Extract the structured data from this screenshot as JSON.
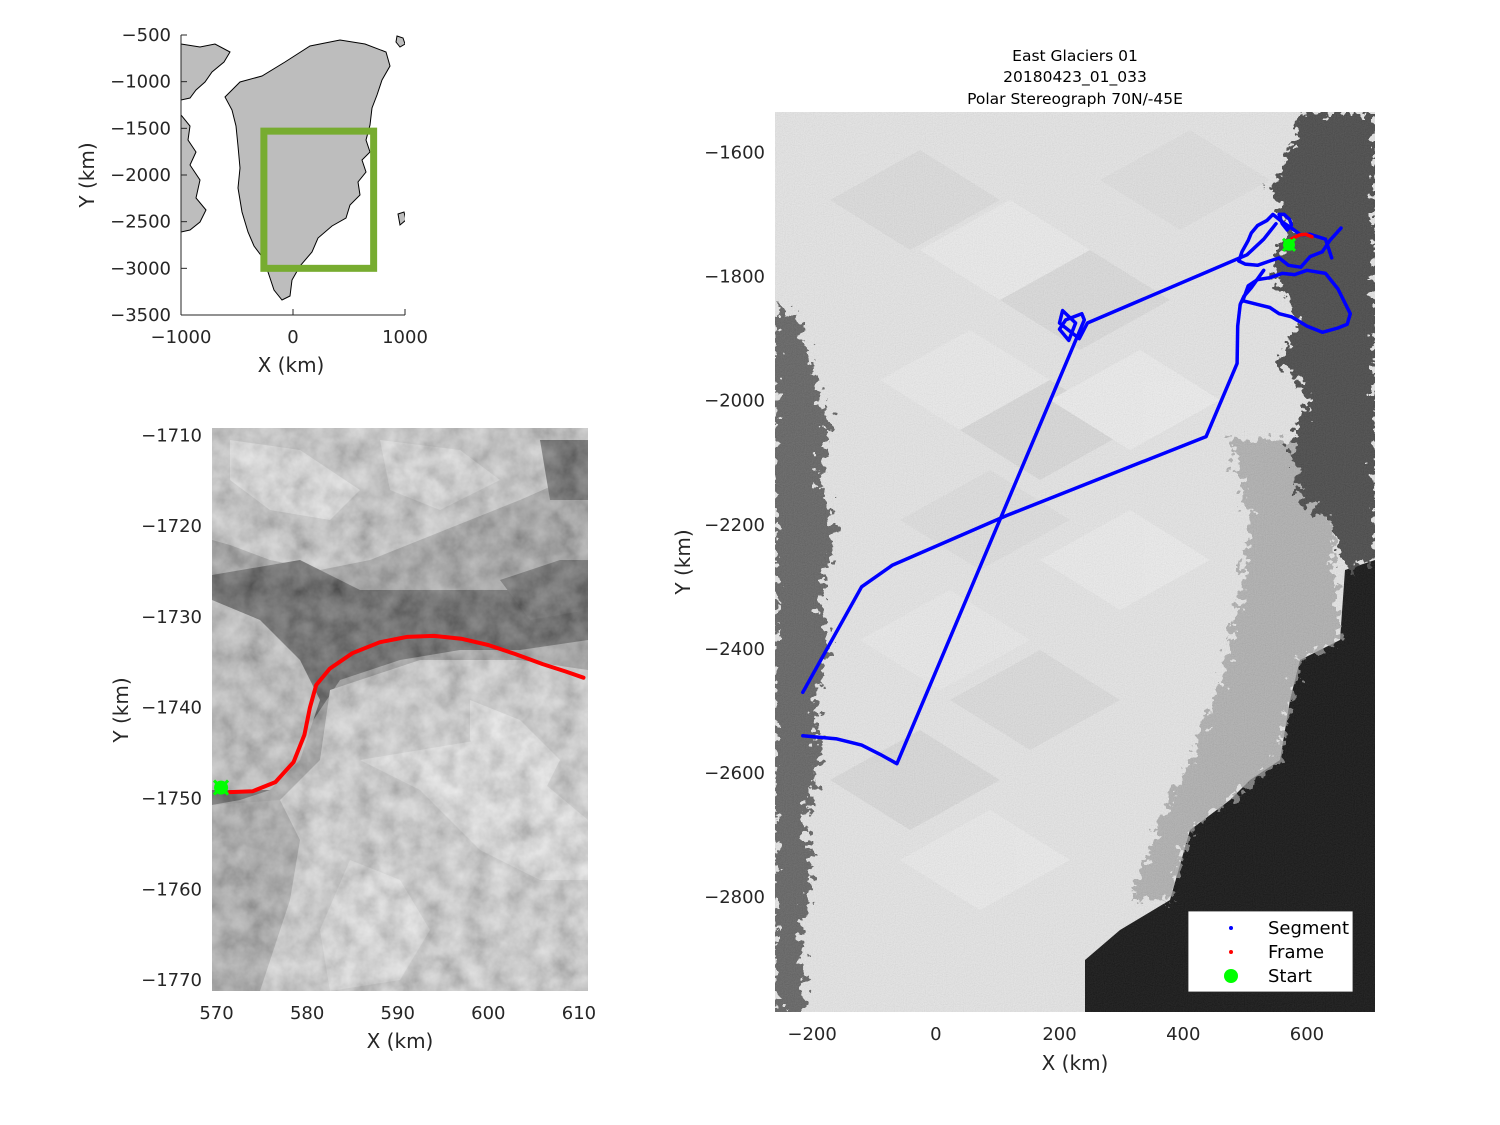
{
  "chart_data": [
    {
      "type": "map",
      "panel": "overview",
      "xlabel": "X (km)",
      "ylabel": "Y (km)",
      "xlim": [
        -1000,
        1000
      ],
      "ylim": [
        -3500,
        -500
      ],
      "xticks": [
        -1000,
        0,
        1000
      ],
      "yticks": [
        -500,
        -1000,
        -1500,
        -2000,
        -2500,
        -3000,
        -3500
      ],
      "xtick_labels": [
        "−1000",
        "0",
        "1000"
      ],
      "ytick_labels": [
        "−500",
        "−1000",
        "−1500",
        "−2000",
        "−2500",
        "−3000",
        "−3500"
      ],
      "land_color": "#bdbdbd",
      "box": {
        "x": [
          -260,
          720
        ],
        "y": [
          -3000,
          -1530
        ],
        "color": "#77ac30"
      }
    },
    {
      "type": "map",
      "panel": "frame-zoom",
      "xlabel": "X (km)",
      "ylabel": "Y (km)",
      "xlim": [
        569.5,
        611
      ],
      "ylim": [
        -1771.2,
        -1709.2
      ],
      "xticks": [
        570,
        580,
        590,
        600,
        610
      ],
      "yticks": [
        -1710,
        -1720,
        -1730,
        -1740,
        -1750,
        -1760,
        -1770
      ],
      "xtick_labels": [
        "570",
        "580",
        "590",
        "600",
        "610"
      ],
      "ytick_labels": [
        "−1710",
        "−1720",
        "−1730",
        "−1740",
        "−1750",
        "−1760",
        "−1770"
      ],
      "frame_track": {
        "color": "#ff0000",
        "x": [
          571.5,
          574,
          576.5,
          578.5,
          579.7,
          580.3,
          581,
          582.5,
          585,
          588,
          591,
          594,
          597,
          600,
          603,
          606,
          608.5,
          610.5
        ],
        "y": [
          -1749.3,
          -1749.2,
          -1748.2,
          -1746,
          -1743,
          -1740,
          -1737.5,
          -1735.7,
          -1734,
          -1732.8,
          -1732.2,
          -1732.1,
          -1732.4,
          -1733.1,
          -1734.1,
          -1735.2,
          -1736,
          -1736.7
        ]
      },
      "start": {
        "x": 570.5,
        "y": -1748.8,
        "color": "#00ff00"
      }
    },
    {
      "type": "map",
      "panel": "flight-track",
      "title": [
        "East Glaciers 01",
        "20180423_01_033",
        "Polar Stereograph 70N/-45E"
      ],
      "xlabel": "X (km)",
      "ylabel": "Y (km)",
      "xlim": [
        -260,
        710
      ],
      "ylim": [
        -2985,
        -1535
      ],
      "xticks": [
        -200,
        0,
        200,
        400,
        600
      ],
      "yticks": [
        -1600,
        -1800,
        -2000,
        -2200,
        -2400,
        -2600,
        -2800
      ],
      "xtick_labels": [
        "−200",
        "0",
        "200",
        "400",
        "600"
      ],
      "ytick_labels": [
        "−1600",
        "−1800",
        "−2000",
        "−2200",
        "−2400",
        "−2600",
        "−2800"
      ],
      "segment_color": "#0000ff",
      "segment_paths": [
        {
          "x": [
            -215,
            -120,
            -70,
            115,
            437,
            487,
            488,
            492,
            498,
            510,
            530
          ],
          "y": [
            -2470,
            -2300,
            -2265,
            -2185,
            -2058,
            -1940,
            -1880,
            -1845,
            -1832,
            -1818,
            -1790
          ]
        },
        {
          "x": [
            -215,
            -160,
            -120,
            -90,
            -63,
            240,
            236,
            210,
            200,
            215,
            226,
            205,
            200,
            232,
            245,
            440,
            503,
            530,
            550
          ],
          "y": [
            -2540,
            -2545,
            -2555,
            -2570,
            -2585,
            -1870,
            -1860,
            -1870,
            -1885,
            -1903,
            -1875,
            -1855,
            -1875,
            -1900,
            -1875,
            -1792,
            -1765,
            -1740,
            -1715
          ]
        },
        {
          "x": [
            496,
            505,
            520,
            540,
            560,
            580,
            600,
            630,
            650,
            670,
            665,
            650,
            625,
            600,
            575,
            555,
            540,
            520,
            500
          ],
          "y": [
            -1840,
            -1815,
            -1805,
            -1802,
            -1795,
            -1797,
            -1790,
            -1795,
            -1820,
            -1860,
            -1877,
            -1883,
            -1890,
            -1880,
            -1865,
            -1860,
            -1850,
            -1845,
            -1840
          ]
        },
        {
          "x": [
            490,
            495,
            505,
            510,
            520,
            535,
            545,
            560,
            575,
            590,
            605,
            630,
            640
          ],
          "y": [
            -1775,
            -1760,
            -1742,
            -1730,
            -1718,
            -1710,
            -1700,
            -1712,
            -1722,
            -1733,
            -1732,
            -1740,
            -1770
          ]
        },
        {
          "x": [
            490,
            500,
            520,
            540,
            555,
            570,
            590,
            605,
            625,
            637,
            646,
            655
          ],
          "y": [
            -1775,
            -1780,
            -1782,
            -1775,
            -1770,
            -1782,
            -1785,
            -1768,
            -1760,
            -1742,
            -1732,
            -1722
          ]
        },
        {
          "x": [
            555,
            560,
            568,
            575,
            572,
            563,
            555
          ],
          "y": [
            -1700,
            -1715,
            -1725,
            -1717,
            -1708,
            -1700,
            -1700
          ]
        }
      ],
      "frame_track": {
        "color": "#ff0000",
        "x": [
          567,
          576,
          588,
          598,
          608
        ],
        "y": [
          -1749,
          -1739,
          -1733,
          -1732,
          -1736
        ]
      },
      "start": {
        "x": 571,
        "y": -1749,
        "color": "#00ff00"
      },
      "legend": {
        "location": "bottom-right",
        "entries": [
          {
            "label": "Segment",
            "marker": "dot",
            "color": "#0000ff"
          },
          {
            "label": "Frame",
            "marker": "dot",
            "color": "#ff0000"
          },
          {
            "label": "Start",
            "marker": "filled-circle",
            "color": "#00ff00"
          }
        ]
      }
    }
  ]
}
